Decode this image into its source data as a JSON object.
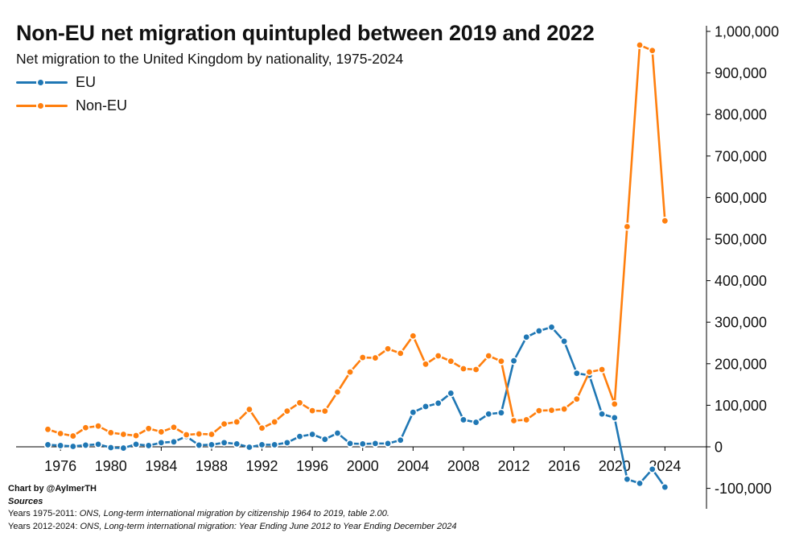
{
  "chart_data": {
    "type": "line",
    "title": "Non-EU net migration quintupled between 2019 and 2022",
    "subtitle": "Net migration to the United Kingdom by nationality, 1975-2024",
    "xlabel": "",
    "ylabel": "",
    "x": [
      1975,
      1976,
      1977,
      1978,
      1979,
      1980,
      1981,
      1982,
      1983,
      1984,
      1985,
      1986,
      1987,
      1988,
      1989,
      1990,
      1991,
      1992,
      1993,
      1994,
      1995,
      1996,
      1997,
      1998,
      1999,
      2000,
      2001,
      2002,
      2003,
      2004,
      2005,
      2006,
      2007,
      2008,
      2009,
      2010,
      2011,
      2012,
      2013,
      2014,
      2015,
      2016,
      2017,
      2018,
      2019,
      2020,
      2021,
      2022,
      2023,
      2024
    ],
    "xticks": [
      "1976",
      "1980",
      "1984",
      "1988",
      "1992",
      "1996",
      "2000",
      "2004",
      "2008",
      "2012",
      "2016",
      "2020",
      "2024"
    ],
    "xlim": [
      1974,
      2027
    ],
    "ylim": [
      -150000,
      1020000
    ],
    "yticks": [
      "-100,000",
      "0",
      "100,000",
      "200,000",
      "300,000",
      "400,000",
      "500,000",
      "600,000",
      "700,000",
      "800,000",
      "900,000",
      "1,000,000"
    ],
    "y_axis_side": "right",
    "legend_position": "top-left",
    "grid": false,
    "series": [
      {
        "name": "EU",
        "color": "#1f77b4",
        "values": [
          5000,
          3000,
          1000,
          4000,
          6000,
          -2000,
          -3000,
          6000,
          3000,
          10000,
          12000,
          25000,
          4000,
          5000,
          10000,
          7000,
          -1000,
          5000,
          5000,
          10000,
          25000,
          30000,
          18000,
          33000,
          8000,
          7000,
          8000,
          8000,
          16000,
          83000,
          97000,
          105000,
          129000,
          65000,
          59000,
          79000,
          82000,
          207000,
          264000,
          279000,
          288000,
          254000,
          177000,
          172000,
          79000,
          70000,
          -78000,
          -88000,
          -54000,
          -97000
        ]
      },
      {
        "name": "Non-EU",
        "color": "#ff7f0e",
        "values": [
          42000,
          32000,
          26000,
          46000,
          50000,
          34000,
          30000,
          27000,
          44000,
          36000,
          47000,
          29000,
          31000,
          30000,
          55000,
          60000,
          90000,
          45000,
          60000,
          86000,
          106000,
          87000,
          86000,
          132000,
          180000,
          215000,
          214000,
          236000,
          225000,
          267000,
          199000,
          219000,
          206000,
          188000,
          186000,
          219000,
          206000,
          63000,
          65000,
          87000,
          88000,
          91000,
          115000,
          180000,
          186000,
          103000,
          530000,
          967000,
          954000,
          544000
        ]
      }
    ]
  },
  "footer": {
    "credit": "Chart by @AylmerTH",
    "sources_label": "Sources",
    "source1_prefix": "Years 1975-2011: ",
    "source1_text": "ONS, Long-term international migration by citizenship 1964 to 2019, table 2.00.",
    "source2_prefix": "Years 2012-2024: ",
    "source2_text": "ONS, Long-term international migration: Year Ending June 2012 to Year Ending December 2024"
  }
}
